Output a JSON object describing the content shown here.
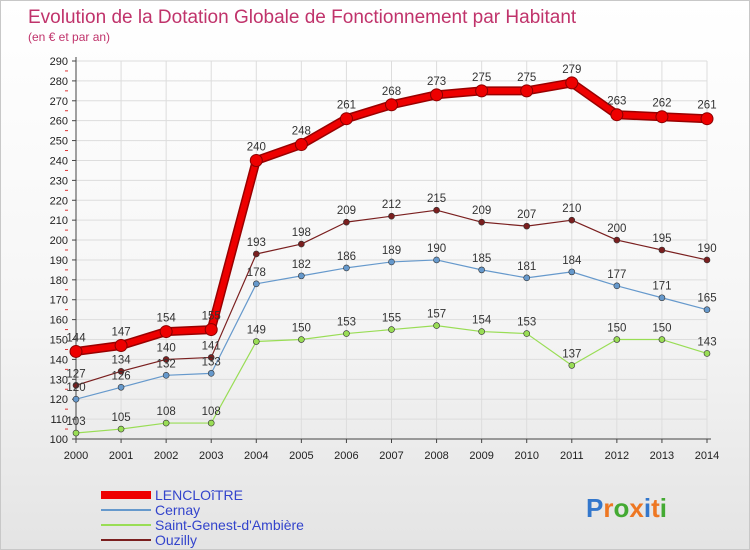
{
  "chart_data": {
    "type": "line",
    "title": "Evolution de la Dotation Globale de Fonctionnement par Habitant",
    "subtitle": "(en € et par an)",
    "xlabel": "",
    "ylabel": "",
    "ylim": [
      100,
      290
    ],
    "ytick_step": 10,
    "grid": true,
    "legend_position": "bottom-left",
    "categories": [
      "2000",
      "2001",
      "2002",
      "2003",
      "2004",
      "2005",
      "2006",
      "2007",
      "2008",
      "2009",
      "2010",
      "2011",
      "2012",
      "2013",
      "2014"
    ],
    "series": [
      {
        "name": "Ouzilly",
        "color": "#7a1f1f",
        "emphasis": false,
        "values": [
          127,
          134,
          140,
          141,
          193,
          198,
          209,
          212,
          215,
          209,
          207,
          210,
          200,
          195,
          190
        ]
      },
      {
        "name": "Saint-Genest-d'Ambière",
        "color": "#99dd55",
        "emphasis": false,
        "values": [
          103,
          105,
          108,
          108,
          149,
          150,
          153,
          155,
          157,
          154,
          153,
          137,
          150,
          150,
          143
        ]
      },
      {
        "name": "Cernay",
        "color": "#6699cc",
        "emphasis": false,
        "values": [
          120,
          126,
          132,
          133,
          178,
          182,
          186,
          189,
          190,
          185,
          181,
          184,
          177,
          171,
          165
        ]
      },
      {
        "name": "LENCLOîTRE",
        "color": "#ee0000",
        "emphasis": true,
        "values": [
          144,
          147,
          154,
          155,
          240,
          248,
          261,
          268,
          273,
          275,
          275,
          279,
          263,
          262,
          261
        ]
      }
    ],
    "legend_order": [
      "LENCLOîTRE",
      "Cernay",
      "Saint-Genest-d'Ambière",
      "Ouzilly"
    ]
  },
  "brand": {
    "text": "Proxiti",
    "colors": [
      "#3377cc",
      "#ee7722",
      "#44aa33",
      "#ee7722",
      "#3377cc",
      "#ee7722",
      "#44aa33"
    ]
  },
  "style": {
    "grid_color": "#dddddd",
    "axis_color": "#444444",
    "text_color": "#333333",
    "title_color": "#c0336b",
    "legend_text_color": "#3344cc"
  }
}
